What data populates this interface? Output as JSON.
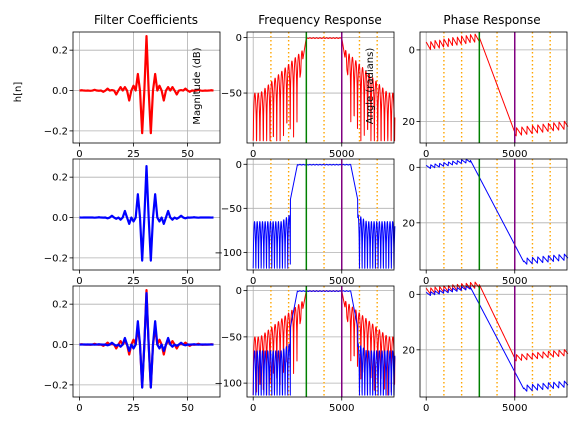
{
  "chart_data": {
    "type": "line",
    "layout": "3x3 grid of subplots",
    "column_titles": [
      "Filter Coefficients",
      "Frequency Response",
      "Phase Response"
    ],
    "ylabels": {
      "coefficients": "h[n]",
      "magnitude": "Magnitude (dB)",
      "phase": "Angle (radians)"
    },
    "colors": {
      "red_series": "#ff0000",
      "blue_series": "#0000ff",
      "band_edge_pass": "#008000",
      "band_edge_stop": "#800080",
      "guide_lines": "#ffa500",
      "grid": "#b0b0b0"
    },
    "grid": true,
    "coefficients": {
      "n_taps": 63,
      "center": 31,
      "peak": 0.27,
      "xlim": [
        -3,
        65
      ],
      "ylim": [
        -0.26,
        0.29
      ],
      "xticks": [
        0,
        25,
        50
      ],
      "yticks": [
        -0.2,
        0.0,
        0.2
      ],
      "ytick_labels": [
        "−0.2",
        "0.0",
        "0.2"
      ]
    },
    "frequency": {
      "xlim": [
        -350,
        7950
      ],
      "xticks": [
        0,
        5000
      ],
      "passband_edge": 3000,
      "stopband_edge": 5000,
      "guide_frequencies": [
        1000,
        2000,
        4000,
        6000,
        7000
      ],
      "rows": [
        {
          "ylim": [
            -95,
            5
          ],
          "yticks": [
            0,
            -50
          ],
          "ytick_labels": [
            "0",
            "−50"
          ]
        },
        {
          "ylim": [
            -120,
            6
          ],
          "yticks": [
            0,
            -50,
            -100
          ],
          "ytick_labels": [
            "0",
            "−50",
            "−100"
          ]
        },
        {
          "ylim": [
            -115,
            5
          ],
          "yticks": [
            0,
            -50,
            -100
          ],
          "ytick_labels": [
            "0",
            "−50",
            "−100"
          ]
        }
      ]
    },
    "phase": {
      "xlim": [
        -350,
        7950
      ],
      "xticks": [
        0,
        5000
      ],
      "rows": [
        {
          "ylim": [
            26,
            -5
          ],
          "yticks": [
            0,
            20
          ]
        },
        {
          "ylim": [
            37,
            -3
          ],
          "yticks": [
            0,
            20
          ]
        },
        {
          "ylim": [
            37,
            -3
          ],
          "yticks": [
            0,
            20
          ]
        }
      ]
    },
    "series": [
      {
        "color": "red",
        "rows": [
          0,
          2
        ],
        "transition_start": 3000,
        "transition_end": 5000,
        "phase_start": -1,
        "phase_end": 23,
        "phase_ripple": 1.2
      },
      {
        "color": "blue",
        "rows": [
          1,
          2
        ],
        "transition_start": 2500,
        "transition_end": 5500,
        "phase_start": 0,
        "phase_end": 34,
        "phase_ripple": 1.2
      }
    ]
  }
}
